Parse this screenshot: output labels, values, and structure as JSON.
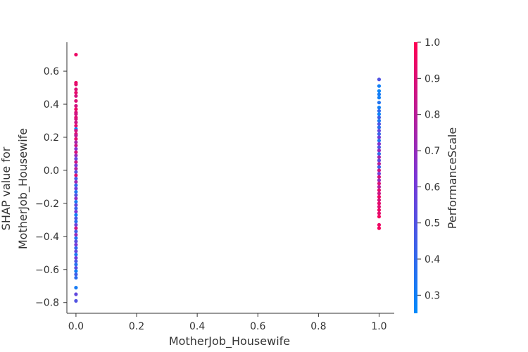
{
  "chart_data": {
    "type": "scatter",
    "title": "",
    "xlabel": "MotherJob_Housewife",
    "ylabel_lines": [
      "SHAP value for",
      "MotherJob_Housewife"
    ],
    "xlim": [
      -0.03,
      1.05
    ],
    "ylim": [
      -0.865,
      0.775
    ],
    "x_ticks": [
      0.0,
      0.2,
      0.4,
      0.6,
      0.8,
      1.0
    ],
    "x_tick_labels": [
      "0.0",
      "0.2",
      "0.4",
      "0.6",
      "0.8",
      "1.0"
    ],
    "y_ticks": [
      0.6,
      0.4,
      0.2,
      0.0,
      -0.2,
      -0.4,
      -0.6,
      -0.8
    ],
    "y_tick_labels": [
      "0.6",
      "0.4",
      "0.2",
      "0.0",
      "−0.2",
      "−0.4",
      "−0.6",
      "−0.8"
    ],
    "colorbar": {
      "label": "PerformanceScale",
      "range": [
        0.25,
        1.0
      ],
      "ticks": [
        1.0,
        0.9,
        0.8,
        0.7,
        0.6,
        0.5,
        0.4,
        0.3
      ],
      "tick_labels": [
        "1.0",
        "0.9",
        "0.8",
        "0.7",
        "0.6",
        "0.5",
        "0.4",
        "0.3"
      ],
      "colormap": [
        "#008afb",
        "#7a37d6",
        "#ff0052"
      ]
    },
    "points": [
      {
        "x": 0,
        "y": 0.7,
        "c": 0.95
      },
      {
        "x": 0,
        "y": 0.53,
        "c": 0.95
      },
      {
        "x": 0,
        "y": 0.52,
        "c": 0.92
      },
      {
        "x": 0,
        "y": 0.49,
        "c": 0.9
      },
      {
        "x": 0,
        "y": 0.47,
        "c": 0.93
      },
      {
        "x": 0,
        "y": 0.45,
        "c": 0.88
      },
      {
        "x": 0,
        "y": 0.42,
        "c": 0.9
      },
      {
        "x": 0,
        "y": 0.39,
        "c": 0.87
      },
      {
        "x": 0,
        "y": 0.37,
        "c": 0.95
      },
      {
        "x": 0,
        "y": 0.35,
        "c": 0.9
      },
      {
        "x": 0,
        "y": 0.34,
        "c": 0.86
      },
      {
        "x": 0,
        "y": 0.32,
        "c": 0.92
      },
      {
        "x": 0,
        "y": 0.31,
        "c": 0.88
      },
      {
        "x": 0,
        "y": 0.29,
        "c": 0.85
      },
      {
        "x": 0,
        "y": 0.27,
        "c": 0.93
      },
      {
        "x": 0,
        "y": 0.25,
        "c": 0.3
      },
      {
        "x": 0,
        "y": 0.24,
        "c": 0.87
      },
      {
        "x": 0,
        "y": 0.22,
        "c": 0.9
      },
      {
        "x": 0,
        "y": 0.21,
        "c": 0.8
      },
      {
        "x": 0,
        "y": 0.19,
        "c": 0.92
      },
      {
        "x": 0,
        "y": 0.17,
        "c": 0.75
      },
      {
        "x": 0,
        "y": 0.15,
        "c": 0.85
      },
      {
        "x": 0,
        "y": 0.13,
        "c": 0.65
      },
      {
        "x": 0,
        "y": 0.11,
        "c": 0.88
      },
      {
        "x": 0,
        "y": 0.09,
        "c": 0.7
      },
      {
        "x": 0,
        "y": 0.07,
        "c": 0.55
      },
      {
        "x": 0,
        "y": 0.05,
        "c": 0.85
      },
      {
        "x": 0,
        "y": 0.03,
        "c": 0.6
      },
      {
        "x": 0,
        "y": 0.01,
        "c": 0.78
      },
      {
        "x": 0,
        "y": -0.01,
        "c": 0.5
      },
      {
        "x": 0,
        "y": -0.03,
        "c": 0.9
      },
      {
        "x": 0,
        "y": -0.05,
        "c": 0.45
      },
      {
        "x": 0,
        "y": -0.07,
        "c": 0.72
      },
      {
        "x": 0,
        "y": -0.09,
        "c": 0.4
      },
      {
        "x": 0,
        "y": -0.11,
        "c": 0.6
      },
      {
        "x": 0,
        "y": -0.13,
        "c": 0.35
      },
      {
        "x": 0,
        "y": -0.15,
        "c": 0.5
      },
      {
        "x": 0,
        "y": -0.17,
        "c": 0.68
      },
      {
        "x": 0,
        "y": -0.19,
        "c": 0.32
      },
      {
        "x": 0,
        "y": -0.21,
        "c": 0.55
      },
      {
        "x": 0,
        "y": -0.23,
        "c": 0.42
      },
      {
        "x": 0,
        "y": -0.25,
        "c": 0.62
      },
      {
        "x": 0,
        "y": -0.27,
        "c": 0.3
      },
      {
        "x": 0,
        "y": -0.29,
        "c": 0.48
      },
      {
        "x": 0,
        "y": -0.31,
        "c": 0.38
      },
      {
        "x": 0,
        "y": -0.33,
        "c": 0.58
      },
      {
        "x": 0,
        "y": -0.35,
        "c": 0.85
      },
      {
        "x": 0,
        "y": -0.37,
        "c": 0.45
      },
      {
        "x": 0,
        "y": -0.39,
        "c": 0.7
      },
      {
        "x": 0,
        "y": -0.41,
        "c": 0.35
      },
      {
        "x": 0,
        "y": -0.43,
        "c": 0.52
      },
      {
        "x": 0,
        "y": -0.45,
        "c": 0.62
      },
      {
        "x": 0,
        "y": -0.47,
        "c": 0.4
      },
      {
        "x": 0,
        "y": -0.49,
        "c": 0.55
      },
      {
        "x": 0,
        "y": -0.51,
        "c": 0.33
      },
      {
        "x": 0,
        "y": -0.53,
        "c": 0.6
      },
      {
        "x": 0,
        "y": -0.55,
        "c": 0.48
      },
      {
        "x": 0,
        "y": -0.57,
        "c": 0.36
      },
      {
        "x": 0,
        "y": -0.59,
        "c": 0.52
      },
      {
        "x": 0,
        "y": -0.61,
        "c": 0.3
      },
      {
        "x": 0,
        "y": -0.63,
        "c": 0.45
      },
      {
        "x": 0,
        "y": -0.65,
        "c": 0.38
      },
      {
        "x": 0,
        "y": -0.71,
        "c": 0.32
      },
      {
        "x": 0,
        "y": -0.75,
        "c": 0.55
      },
      {
        "x": 0,
        "y": -0.79,
        "c": 0.5
      },
      {
        "x": 1,
        "y": 0.55,
        "c": 0.5
      },
      {
        "x": 1,
        "y": 0.51,
        "c": 0.3
      },
      {
        "x": 1,
        "y": 0.48,
        "c": 0.28
      },
      {
        "x": 1,
        "y": 0.46,
        "c": 0.32
      },
      {
        "x": 1,
        "y": 0.44,
        "c": 0.3
      },
      {
        "x": 1,
        "y": 0.41,
        "c": 0.35
      },
      {
        "x": 1,
        "y": 0.38,
        "c": 0.3
      },
      {
        "x": 1,
        "y": 0.36,
        "c": 0.4
      },
      {
        "x": 1,
        "y": 0.34,
        "c": 0.28
      },
      {
        "x": 1,
        "y": 0.32,
        "c": 0.45
      },
      {
        "x": 1,
        "y": 0.3,
        "c": 0.33
      },
      {
        "x": 1,
        "y": 0.28,
        "c": 0.5
      },
      {
        "x": 1,
        "y": 0.26,
        "c": 0.38
      },
      {
        "x": 1,
        "y": 0.24,
        "c": 0.55
      },
      {
        "x": 1,
        "y": 0.22,
        "c": 0.42
      },
      {
        "x": 1,
        "y": 0.2,
        "c": 0.6
      },
      {
        "x": 1,
        "y": 0.18,
        "c": 0.35
      },
      {
        "x": 1,
        "y": 0.16,
        "c": 0.65
      },
      {
        "x": 1,
        "y": 0.14,
        "c": 0.48
      },
      {
        "x": 1,
        "y": 0.12,
        "c": 0.7
      },
      {
        "x": 1,
        "y": 0.1,
        "c": 0.4
      },
      {
        "x": 1,
        "y": 0.08,
        "c": 0.75
      },
      {
        "x": 1,
        "y": 0.06,
        "c": 0.55
      },
      {
        "x": 1,
        "y": 0.04,
        "c": 0.8
      },
      {
        "x": 1,
        "y": 0.02,
        "c": 0.45
      },
      {
        "x": 1,
        "y": 0.0,
        "c": 0.85
      },
      {
        "x": 1,
        "y": -0.02,
        "c": 0.6
      },
      {
        "x": 1,
        "y": -0.04,
        "c": 0.88
      },
      {
        "x": 1,
        "y": -0.06,
        "c": 0.7
      },
      {
        "x": 1,
        "y": -0.08,
        "c": 0.9
      },
      {
        "x": 1,
        "y": -0.1,
        "c": 0.78
      },
      {
        "x": 1,
        "y": -0.12,
        "c": 0.92
      },
      {
        "x": 1,
        "y": -0.14,
        "c": 0.85
      },
      {
        "x": 1,
        "y": -0.16,
        "c": 0.95
      },
      {
        "x": 1,
        "y": -0.18,
        "c": 0.88
      },
      {
        "x": 1,
        "y": -0.2,
        "c": 0.93
      },
      {
        "x": 1,
        "y": -0.22,
        "c": 0.9
      },
      {
        "x": 1,
        "y": -0.24,
        "c": 0.95
      },
      {
        "x": 1,
        "y": -0.26,
        "c": 0.92
      },
      {
        "x": 1,
        "y": -0.28,
        "c": 0.97
      },
      {
        "x": 1,
        "y": -0.33,
        "c": 0.95
      },
      {
        "x": 1,
        "y": -0.35,
        "c": 0.97
      }
    ]
  }
}
